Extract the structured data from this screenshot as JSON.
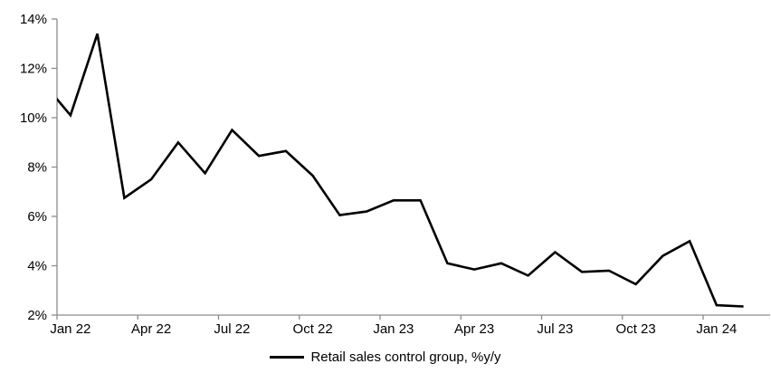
{
  "chart_data": {
    "type": "line",
    "title": "",
    "xlabel": "",
    "ylabel": "",
    "ylim": [
      2,
      14
    ],
    "grid": false,
    "legend_position": "bottom-center",
    "background_color": "#FFFFFF",
    "axis_color": "#8C8C8C",
    "text_color": "#000000",
    "line_width": 2.6,
    "x": [
      "Jan 22",
      "Feb 22",
      "Mar 22",
      "Apr 22",
      "May 22",
      "Jun 22",
      "Jul 22",
      "Aug 22",
      "Sep 22",
      "Oct 22",
      "Nov 22",
      "Dec 22",
      "Jan 23",
      "Feb 23",
      "Mar 23",
      "Apr 23",
      "May 23",
      "Jun 23",
      "Jul 23",
      "Aug 23",
      "Sep 23",
      "Oct 23",
      "Nov 23",
      "Dec 23",
      "Jan 24",
      "Feb 24"
    ],
    "series": [
      {
        "name": "Retail sales control group, %y/y",
        "color": "#000000",
        "values": [
          10.1,
          13.4,
          6.75,
          7.5,
          9.0,
          7.75,
          9.5,
          8.45,
          8.65,
          7.65,
          6.05,
          6.2,
          6.65,
          6.65,
          4.1,
          3.85,
          4.1,
          3.6,
          4.55,
          3.75,
          3.8,
          3.25,
          4.4,
          5.0,
          2.4,
          2.35
        ]
      }
    ],
    "lead_in_clipped_point": {
      "x": "Dec 21",
      "value": 11.4
    },
    "y_ticks": [
      {
        "value": 2,
        "label": "2%"
      },
      {
        "value": 4,
        "label": "4%"
      },
      {
        "value": 6,
        "label": "6%"
      },
      {
        "value": 8,
        "label": "8%"
      },
      {
        "value": 10,
        "label": "10%"
      },
      {
        "value": 12,
        "label": "12%"
      },
      {
        "value": 14,
        "label": "14%"
      }
    ],
    "x_ticks": [
      {
        "month_index": 0,
        "label": "Jan 22"
      },
      {
        "month_index": 3,
        "label": "Apr 22"
      },
      {
        "month_index": 6,
        "label": "Jul 22"
      },
      {
        "month_index": 9,
        "label": "Oct 22"
      },
      {
        "month_index": 12,
        "label": "Jan 23"
      },
      {
        "month_index": 15,
        "label": "Apr 23"
      },
      {
        "month_index": 18,
        "label": "Jul 23"
      },
      {
        "month_index": 21,
        "label": "Oct 23"
      },
      {
        "month_index": 24,
        "label": "Jan 24"
      }
    ]
  }
}
